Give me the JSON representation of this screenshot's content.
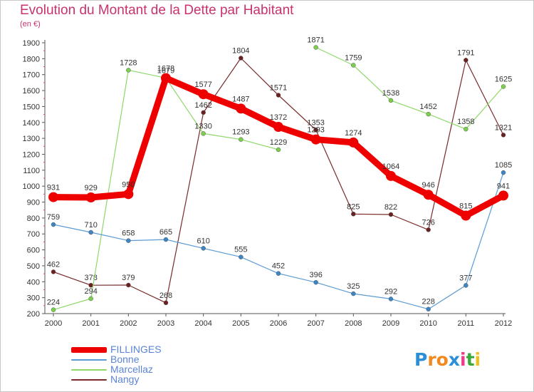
{
  "chart_data": {
    "type": "line",
    "title": "Evolution du Montant de la Dette par Habitant",
    "subtitle": "(en €)",
    "xlabel": "",
    "ylabel": "",
    "categories": [
      "2000",
      "2001",
      "2002",
      "2003",
      "2004",
      "2005",
      "2006",
      "2007",
      "2008",
      "2009",
      "2010",
      "2011",
      "2012"
    ],
    "ylim": [
      200,
      1900
    ],
    "yticks": [
      200,
      300,
      400,
      500,
      600,
      700,
      800,
      900,
      1000,
      1100,
      1200,
      1300,
      1400,
      1500,
      1600,
      1700,
      1800,
      1900
    ],
    "grid": false,
    "legend_position": "bottom-left",
    "series": [
      {
        "name": "Nangy",
        "color": "#7a2a2a",
        "point_color": "#6b1f1f",
        "values": [
          462,
          378,
          379,
          268,
          1462,
          1804,
          1571,
          1353,
          825,
          822,
          726,
          1791,
          1321
        ]
      },
      {
        "name": "Marcellaz",
        "color": "#8ed86a",
        "point_color": "#7ccf4a",
        "values": [
          224,
          294,
          1728,
          1679,
          1330,
          1293,
          1229,
          1871,
          1759,
          1538,
          1452,
          1358,
          1625
        ],
        "missing_after": [
          6
        ]
      },
      {
        "name": "Bonne",
        "color": "#5b9bd5",
        "point_color": "#3c86c6",
        "values": [
          759,
          710,
          658,
          665,
          610,
          555,
          452,
          396,
          325,
          292,
          228,
          377,
          1085
        ]
      },
      {
        "name": "FILLINGES",
        "color": "#ee0000",
        "point_color": "#ee0000",
        "values": [
          931,
          929,
          950,
          1678,
          1577,
          1487,
          1372,
          1293,
          1274,
          1064,
          946,
          815,
          941
        ]
      }
    ]
  },
  "legend": {
    "items": [
      {
        "name": "FILLINGES",
        "color": "#ee0000"
      },
      {
        "name": "Bonne",
        "color": "#5b9bd5"
      },
      {
        "name": "Marcellaz",
        "color": "#8ed86a"
      },
      {
        "name": "Nangy",
        "color": "#7a2a2a"
      }
    ]
  },
  "logo": {
    "letters": [
      "P",
      "r",
      "o",
      "x",
      "i",
      "t",
      "i"
    ],
    "colors": [
      "#2a8fd8",
      "#f08a1e",
      "#f08a1e",
      "#2a8fd8",
      "#ee3a8a",
      "#3aa83a",
      "#f0c020"
    ]
  }
}
